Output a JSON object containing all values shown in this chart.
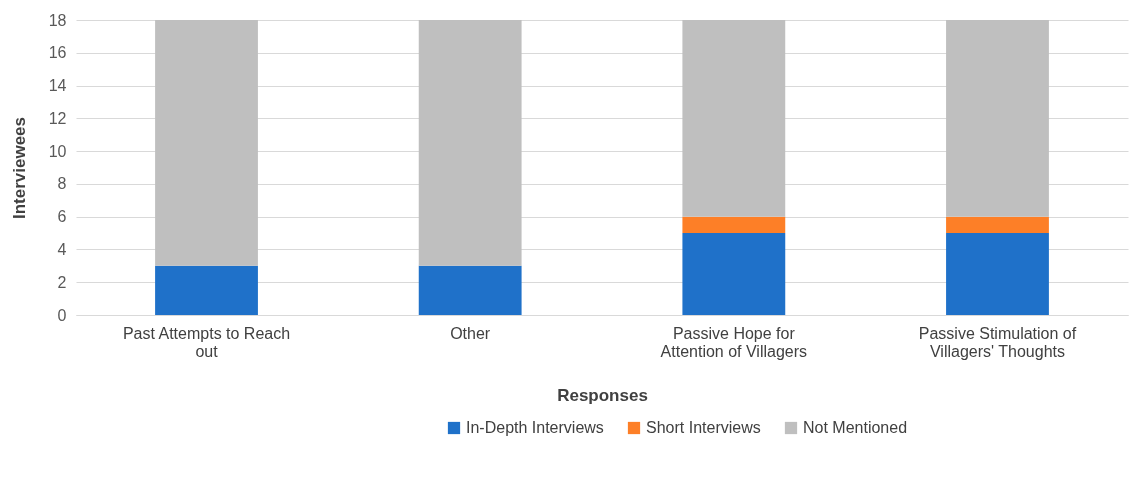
{
  "chart_data": {
    "type": "bar",
    "stacked": true,
    "xlabel": "Responses",
    "ylabel": "Interviewees",
    "categories": [
      "Past Attempts to Reach out",
      "Other",
      "Passive Hope for Attention of Villagers",
      "Passive Stimulation of Villagers' Thoughts"
    ],
    "series": [
      {
        "name": "In-Depth Interviews",
        "color": "#1f71c9",
        "values": [
          3,
          3,
          5,
          5
        ]
      },
      {
        "name": "Short Interviews",
        "color": "#fd7f27",
        "values": [
          0,
          0,
          1,
          1
        ]
      },
      {
        "name": "Not Mentioned",
        "color": "#bfbfbf",
        "values": [
          15,
          15,
          12,
          12
        ]
      }
    ],
    "ylim": [
      0,
      18
    ],
    "yticks": [
      0,
      2,
      4,
      6,
      8,
      10,
      12,
      14,
      16,
      18
    ],
    "grid": "y",
    "legend": "bottom"
  }
}
